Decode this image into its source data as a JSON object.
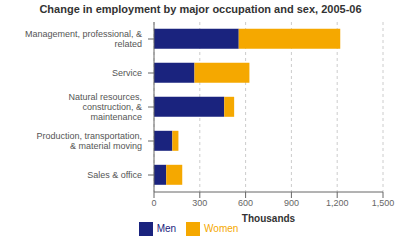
{
  "chart_data": {
    "type": "bar",
    "title": "Change in employment by major occupation and sex, 2005-06",
    "orientation": "horizontal",
    "stacked": true,
    "categories": [
      "Management, professional, & related",
      "Service",
      "Natural resources, construction, &\nmaintenance",
      "Production, transportation, & material moving",
      "Sales & office"
    ],
    "series": [
      {
        "name": "Men",
        "color": "#1a237e",
        "values": [
          555,
          265,
          460,
          120,
          80
        ]
      },
      {
        "name": "Women",
        "color": "#f5a800",
        "values": [
          665,
          360,
          65,
          40,
          105
        ]
      }
    ],
    "xlabel": "Thousands",
    "xlim": [
      0,
      1500
    ],
    "xticks": [
      0,
      300,
      600,
      900,
      {
        "value": 1200,
        "label": "1,200"
      },
      {
        "value": 1500,
        "label": "1,500"
      }
    ],
    "grid": true,
    "legend": "bottom"
  }
}
